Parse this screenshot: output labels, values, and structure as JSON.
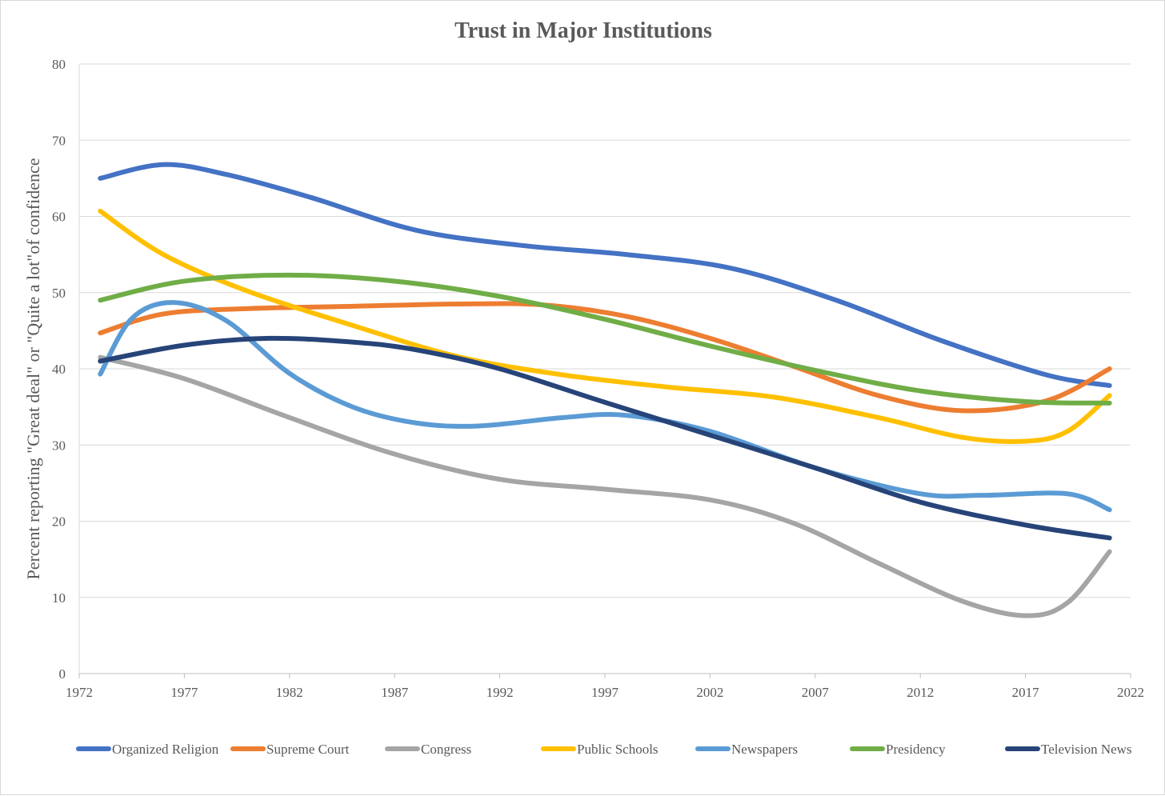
{
  "chart_data": {
    "type": "line",
    "title": "Trust in Major Institutions",
    "xlabel": "",
    "ylabel": "Percent reporting \"Great deal\" or \"Quite a lot\"of confidence",
    "xlim": [
      1972,
      2022
    ],
    "ylim": [
      0,
      80
    ],
    "xticks": [
      1972,
      1977,
      1982,
      1987,
      1992,
      1997,
      2002,
      2007,
      2012,
      2017,
      2022
    ],
    "yticks": [
      0,
      10,
      20,
      30,
      40,
      50,
      60,
      70,
      80
    ],
    "grid": "horizontal",
    "legend_position": "bottom",
    "series": [
      {
        "name": "Organized Religion",
        "color": "#4472C4",
        "x": [
          1973,
          1976,
          1979,
          1983,
          1988,
          1993,
          1998,
          2003,
          2008,
          2013,
          2018,
          2021
        ],
        "y": [
          65,
          66.8,
          65.5,
          62.5,
          58.2,
          56.2,
          55,
          53.2,
          49,
          43.7,
          39.2,
          37.8
        ]
      },
      {
        "name": "Supreme Court",
        "color": "#ED7D31",
        "x": [
          1973,
          1976,
          1980,
          1985,
          1990,
          1994,
          1998,
          2002,
          2006,
          2010,
          2014,
          2018,
          2021
        ],
        "y": [
          44.7,
          47.2,
          47.9,
          48.2,
          48.5,
          48.4,
          46.9,
          44,
          40.3,
          36.5,
          34.5,
          35.8,
          40
        ]
      },
      {
        "name": "Congress",
        "color": "#A5A5A5",
        "x": [
          1973,
          1977,
          1982,
          1987,
          1992,
          1997,
          2002,
          2006,
          2010,
          2014,
          2017,
          2019,
          2021
        ],
        "y": [
          41.5,
          38.7,
          33.6,
          28.8,
          25.5,
          24.2,
          22.8,
          19.7,
          14.5,
          9.5,
          7.6,
          9.3,
          16
        ]
      },
      {
        "name": "Public Schools",
        "color": "#FFC000",
        "x": [
          1973,
          1976,
          1980,
          1985,
          1990,
          1995,
          2000,
          2005,
          2010,
          2014,
          2017,
          2019,
          2021
        ],
        "y": [
          60.7,
          55,
          50.2,
          45.7,
          41.6,
          39.2,
          37.6,
          36.3,
          33.6,
          31,
          30.5,
          31.8,
          36.5
        ]
      },
      {
        "name": "Newspapers",
        "color": "#5B9BD5",
        "x": [
          1973,
          1974.5,
          1976.5,
          1979,
          1982,
          1985,
          1988,
          1991,
          1995,
          1998,
          2002,
          2007,
          2012,
          2015,
          2019,
          2021
        ],
        "y": [
          39.3,
          46.6,
          48.7,
          46.3,
          39.4,
          35,
          32.9,
          32.5,
          33.6,
          33.9,
          31.8,
          27,
          23.6,
          23.4,
          23.6,
          21.5
        ]
      },
      {
        "name": "Presidency",
        "color": "#70AD47",
        "x": [
          1973,
          1977,
          1982,
          1987,
          1992,
          1997,
          2002,
          2007,
          2012,
          2017,
          2021
        ],
        "y": [
          49,
          51.5,
          52.3,
          51.5,
          49.5,
          46.5,
          43,
          39.8,
          37.1,
          35.7,
          35.5
        ]
      },
      {
        "name": "Television News",
        "color": "#264478",
        "x": [
          1973,
          1977,
          1981,
          1985,
          1988,
          1992,
          1997,
          2002,
          2007,
          2012,
          2017,
          2021
        ],
        "y": [
          41,
          43.1,
          44,
          43.5,
          42.5,
          40,
          35.6,
          31.3,
          27,
          22.5,
          19.5,
          17.8
        ]
      }
    ]
  }
}
